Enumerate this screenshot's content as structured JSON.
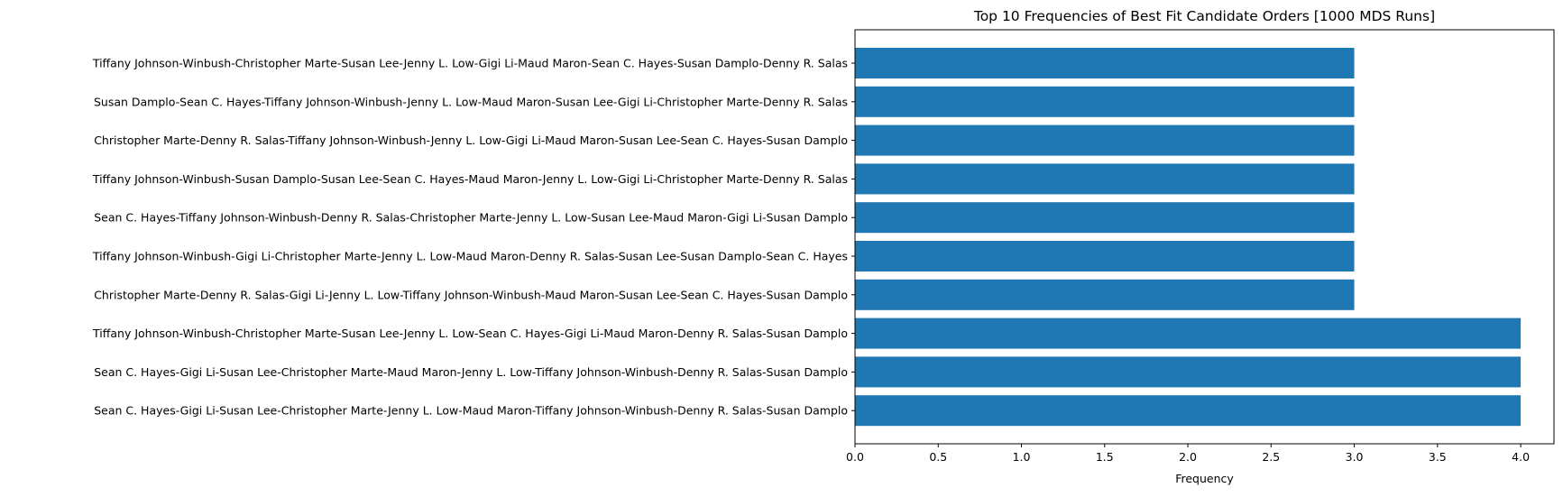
{
  "chart_data": {
    "type": "bar",
    "orientation": "horizontal",
    "title": "Top 10 Frequencies of Best Fit Candidate Orders [1000 MDS Runs]",
    "xlabel": "Frequency",
    "ylabel": "",
    "xlim": [
      0,
      4.2
    ],
    "xticks": [
      0.0,
      0.5,
      1.0,
      1.5,
      2.0,
      2.5,
      3.0,
      3.5,
      4.0
    ],
    "xtick_labels": [
      "0.0",
      "0.5",
      "1.0",
      "1.5",
      "2.0",
      "2.5",
      "3.0",
      "3.5",
      "4.0"
    ],
    "grid": false,
    "bar_color": "#1f77b4",
    "categories": [
      "Tiffany Johnson-Winbush-Christopher Marte-Susan Lee-Jenny L. Low-Gigi Li-Maud Maron-Sean C. Hayes-Susan Damplo-Denny R. Salas",
      "Susan Damplo-Sean C. Hayes-Tiffany Johnson-Winbush-Jenny L. Low-Maud Maron-Susan Lee-Gigi Li-Christopher Marte-Denny R. Salas",
      "Christopher Marte-Denny R. Salas-Tiffany Johnson-Winbush-Jenny L. Low-Gigi Li-Maud Maron-Susan Lee-Sean C. Hayes-Susan Damplo",
      "Tiffany Johnson-Winbush-Susan Damplo-Susan Lee-Sean C. Hayes-Maud Maron-Jenny L. Low-Gigi Li-Christopher Marte-Denny R. Salas",
      "Sean C. Hayes-Tiffany Johnson-Winbush-Denny R. Salas-Christopher Marte-Jenny L. Low-Susan Lee-Maud Maron-Gigi Li-Susan Damplo",
      "Tiffany Johnson-Winbush-Gigi Li-Christopher Marte-Jenny L. Low-Maud Maron-Denny R. Salas-Susan Lee-Susan Damplo-Sean C. Hayes",
      "Christopher Marte-Denny R. Salas-Gigi Li-Jenny L. Low-Tiffany Johnson-Winbush-Maud Maron-Susan Lee-Sean C. Hayes-Susan Damplo",
      "Tiffany Johnson-Winbush-Christopher Marte-Susan Lee-Jenny L. Low-Sean C. Hayes-Gigi Li-Maud Maron-Denny R. Salas-Susan Damplo",
      "Sean C. Hayes-Gigi Li-Susan Lee-Christopher Marte-Maud Maron-Jenny L. Low-Tiffany Johnson-Winbush-Denny R. Salas-Susan Damplo",
      "Sean C. Hayes-Gigi Li-Susan Lee-Christopher Marte-Jenny L. Low-Maud Maron-Tiffany Johnson-Winbush-Denny R. Salas-Susan Damplo"
    ],
    "values": [
      3,
      3,
      3,
      3,
      3,
      3,
      3,
      4,
      4,
      4
    ]
  }
}
